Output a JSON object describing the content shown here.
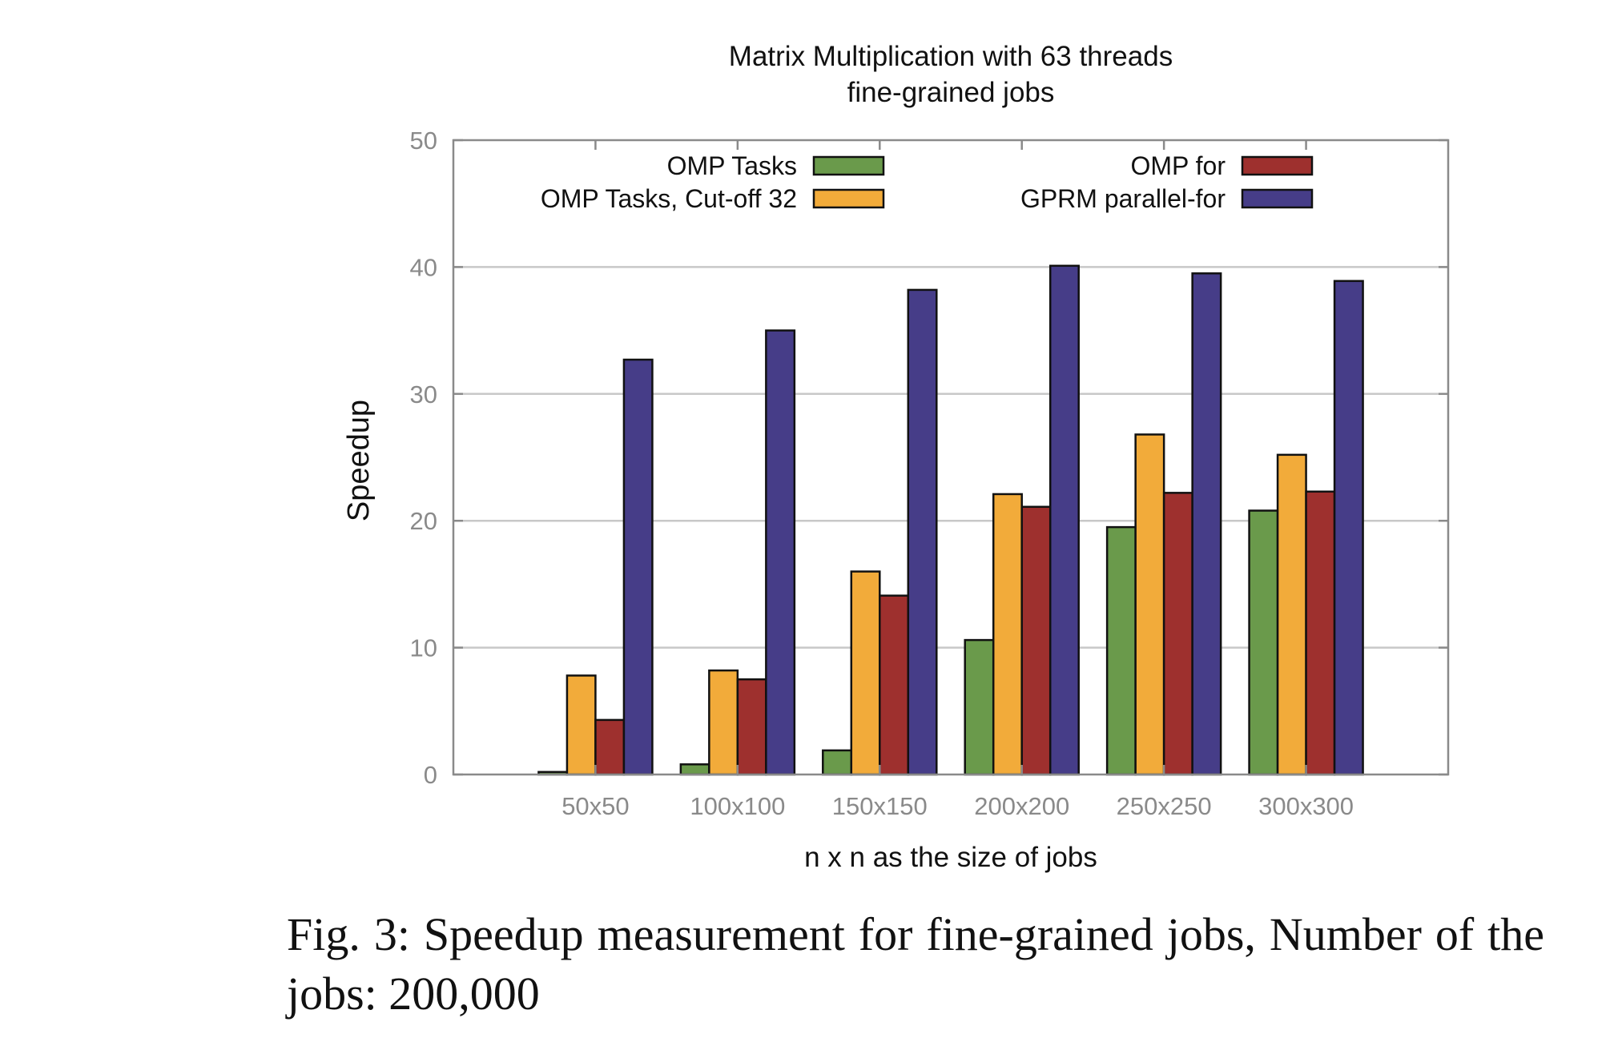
{
  "chart_data": {
    "type": "bar",
    "title": "Matrix Multiplication with 63 threads",
    "subtitle": "fine-grained jobs",
    "xlabel": "n x n as the size of jobs",
    "ylabel": "Speedup",
    "ylim": [
      0,
      50
    ],
    "yticks": [
      0,
      10,
      20,
      30,
      40,
      50
    ],
    "grid": true,
    "legend_placement": "top",
    "categories": [
      "50x50",
      "100x100",
      "150x150",
      "200x200",
      "250x250",
      "300x300"
    ],
    "series": [
      {
        "name": "OMP Tasks",
        "color": "#6a9a4b",
        "values": [
          0.2,
          0.8,
          1.9,
          10.6,
          19.5,
          20.8
        ]
      },
      {
        "name": "OMP Tasks, Cut-off 32",
        "color": "#f2ab3a",
        "values": [
          7.8,
          8.2,
          16.0,
          22.1,
          26.8,
          25.2
        ]
      },
      {
        "name": "OMP for",
        "color": "#9e302e",
        "values": [
          4.3,
          7.5,
          14.1,
          21.1,
          22.2,
          22.3
        ]
      },
      {
        "name": "GPRM parallel-for",
        "color": "#463d88",
        "values": [
          32.7,
          35.0,
          38.2,
          40.1,
          39.5,
          38.9
        ]
      }
    ]
  },
  "caption": {
    "text": "Fig. 3:  Speedup measurement for fine-grained jobs, Number of the jobs: 200,000"
  }
}
